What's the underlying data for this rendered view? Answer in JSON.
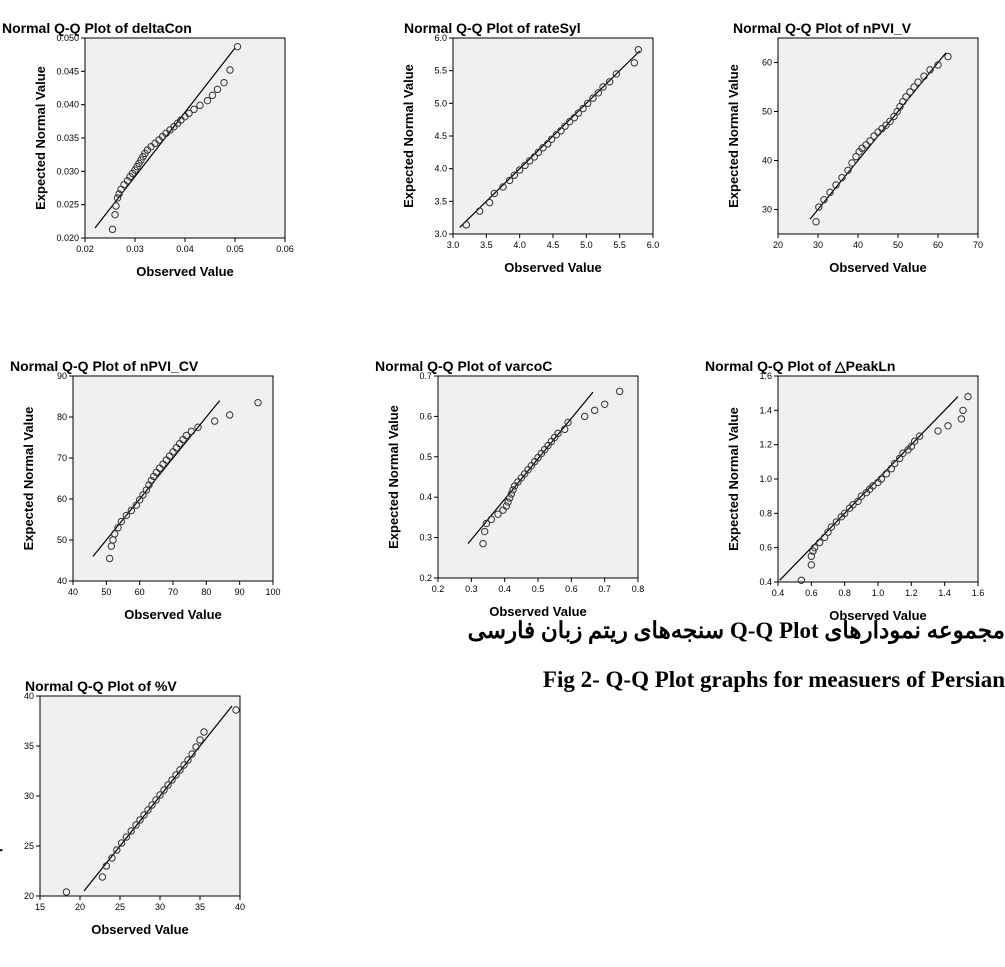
{
  "chart_data": [
    {
      "type": "scatter",
      "title": "Normal Q-Q Plot of deltaCon",
      "xlabel": "Observed Value",
      "ylabel": "Expected Normal Value",
      "xlim": [
        0.02,
        0.06
      ],
      "ylim": [
        0.02,
        0.05
      ],
      "xticks": [
        0.02,
        0.03,
        0.04,
        0.05,
        0.06
      ],
      "xtick_labels": [
        "0.02",
        "0.03",
        "0.04",
        "0.05",
        "0.06"
      ],
      "yticks": [
        0.02,
        0.025,
        0.03,
        0.035,
        0.04,
        0.045,
        0.05
      ],
      "ytick_labels": [
        "0.020",
        "0.025",
        "0.030",
        "0.035",
        "0.040",
        "0.045",
        "0.050"
      ],
      "fit_line": [
        [
          0.022,
          0.0215
        ],
        [
          0.05,
          0.0485
        ]
      ],
      "x": [
        0.0255,
        0.026,
        0.0262,
        0.0265,
        0.0268,
        0.0272,
        0.0278,
        0.0285,
        0.029,
        0.0295,
        0.03,
        0.0304,
        0.0308,
        0.0312,
        0.0316,
        0.032,
        0.0325,
        0.0332,
        0.034,
        0.0348,
        0.0355,
        0.0362,
        0.037,
        0.0378,
        0.0385,
        0.0392,
        0.04,
        0.0408,
        0.0418,
        0.043,
        0.0445,
        0.0455,
        0.0465,
        0.0478,
        0.049,
        0.0505
      ],
      "y": [
        0.0213,
        0.0235,
        0.0248,
        0.026,
        0.0266,
        0.0273,
        0.028,
        0.0286,
        0.0292,
        0.0297,
        0.0302,
        0.0307,
        0.0312,
        0.0317,
        0.0322,
        0.0327,
        0.0332,
        0.0337,
        0.0342,
        0.0347,
        0.0352,
        0.0357,
        0.0362,
        0.0367,
        0.0372,
        0.0377,
        0.0382,
        0.0387,
        0.0393,
        0.0399,
        0.0406,
        0.0414,
        0.0423,
        0.0433,
        0.0452,
        0.0487
      ]
    },
    {
      "type": "scatter",
      "title": "Normal Q-Q Plot of rateSyl",
      "xlabel": "Observed Value",
      "ylabel": "Expected Normal Value",
      "xlim": [
        3.0,
        6.0
      ],
      "ylim": [
        3.0,
        6.0
      ],
      "xticks": [
        3.0,
        3.5,
        4.0,
        4.5,
        5.0,
        5.5,
        6.0
      ],
      "xtick_labels": [
        "3.0",
        "3.5",
        "4.0",
        "4.5",
        "5.0",
        "5.5",
        "6.0"
      ],
      "yticks": [
        3.0,
        3.5,
        4.0,
        4.5,
        5.0,
        5.5,
        6.0
      ],
      "ytick_labels": [
        "3.0",
        "3.5",
        "4.0",
        "4.5",
        "5.0",
        "5.5",
        "6.0"
      ],
      "fit_line": [
        [
          3.1,
          3.1
        ],
        [
          5.8,
          5.8
        ]
      ],
      "x": [
        3.2,
        3.4,
        3.55,
        3.62,
        3.75,
        3.85,
        3.92,
        4.0,
        4.08,
        4.15,
        4.22,
        4.28,
        4.35,
        4.42,
        4.48,
        4.55,
        4.62,
        4.68,
        4.75,
        4.82,
        4.88,
        4.95,
        5.02,
        5.1,
        5.18,
        5.25,
        5.35,
        5.45,
        5.72,
        5.78
      ],
      "y": [
        3.14,
        3.35,
        3.48,
        3.62,
        3.72,
        3.82,
        3.9,
        3.98,
        4.05,
        4.12,
        4.18,
        4.25,
        4.32,
        4.38,
        4.45,
        4.52,
        4.58,
        4.65,
        4.72,
        4.78,
        4.85,
        4.92,
        5.0,
        5.08,
        5.16,
        5.25,
        5.33,
        5.45,
        5.62,
        5.82
      ]
    },
    {
      "type": "scatter",
      "title": "Normal Q-Q Plot of nPVI_V",
      "xlabel": "Observed Value",
      "ylabel": "Expected Normal Value",
      "xlim": [
        20,
        70
      ],
      "ylim": [
        25,
        65
      ],
      "xticks": [
        20,
        30,
        40,
        50,
        60,
        70
      ],
      "xtick_labels": [
        "20",
        "30",
        "40",
        "50",
        "60",
        "70"
      ],
      "yticks": [
        30,
        40,
        50,
        60
      ],
      "ytick_labels": [
        "30",
        "40",
        "50",
        "60"
      ],
      "fit_line": [
        [
          28,
          28
        ],
        [
          62,
          62
        ]
      ],
      "x": [
        29.5,
        30.2,
        31.5,
        33,
        34.5,
        36,
        37.5,
        38.5,
        39.5,
        40.3,
        41,
        42,
        43,
        44,
        45,
        46,
        47,
        48,
        49,
        49.8,
        50.5,
        51.2,
        52,
        53,
        54,
        55,
        56.5,
        58,
        60,
        62.5
      ],
      "y": [
        27.5,
        30.5,
        32,
        33.5,
        35,
        36.5,
        38,
        39.5,
        40.8,
        41.8,
        42.5,
        43.2,
        44,
        45,
        45.8,
        46.5,
        47.2,
        48,
        49,
        50,
        51,
        52,
        53,
        54,
        55,
        56,
        57.2,
        58.5,
        59.5,
        61.2
      ]
    },
    {
      "type": "scatter",
      "title": "Normal Q-Q Plot of nPVI_CV",
      "xlabel": "Observed Value",
      "ylabel": "Expected Normal Value",
      "xlim": [
        40,
        100
      ],
      "ylim": [
        40,
        90
      ],
      "xticks": [
        40,
        50,
        60,
        70,
        80,
        90,
        100
      ],
      "xtick_labels": [
        "40",
        "50",
        "60",
        "70",
        "80",
        "90",
        "100"
      ],
      "yticks": [
        40,
        50,
        60,
        70,
        80,
        90
      ],
      "ytick_labels": [
        "40",
        "50",
        "60",
        "70",
        "80",
        "90"
      ],
      "fit_line": [
        [
          46,
          46
        ],
        [
          84,
          84
        ]
      ],
      "x": [
        51,
        51.5,
        52,
        52.5,
        53.5,
        54.5,
        56,
        57.5,
        59,
        60,
        61,
        62,
        62.8,
        63.5,
        64.2,
        65,
        66,
        67,
        68,
        69,
        70,
        71,
        72,
        73,
        74,
        75.5,
        77.5,
        82.5,
        87,
        95.5
      ],
      "y": [
        45.5,
        48.5,
        50,
        51.5,
        53,
        54.5,
        56,
        57.2,
        58.5,
        59.8,
        61,
        62.2,
        63.4,
        64.5,
        65.5,
        66.5,
        67.5,
        68.5,
        69.5,
        70.5,
        71.5,
        72.5,
        73.5,
        74.5,
        75.5,
        76.5,
        77.5,
        79,
        80.5,
        83.5
      ]
    },
    {
      "type": "scatter",
      "title": "Normal Q-Q Plot of varcoC",
      "xlabel": "Observed Value",
      "ylabel": "Expected Normal Value",
      "xlim": [
        0.2,
        0.8
      ],
      "ylim": [
        0.2,
        0.7
      ],
      "xticks": [
        0.2,
        0.3,
        0.4,
        0.5,
        0.6,
        0.7,
        0.8
      ],
      "xtick_labels": [
        "0.2",
        "0.3",
        "0.4",
        "0.5",
        "0.6",
        "0.7",
        "0.8"
      ],
      "yticks": [
        0.2,
        0.3,
        0.4,
        0.5,
        0.6,
        0.7
      ],
      "ytick_labels": [
        "0.2",
        "0.3",
        "0.4",
        "0.5",
        "0.6",
        "0.7"
      ],
      "fit_line": [
        [
          0.29,
          0.285
        ],
        [
          0.665,
          0.66
        ]
      ],
      "x": [
        0.335,
        0.34,
        0.345,
        0.36,
        0.38,
        0.395,
        0.405,
        0.41,
        0.415,
        0.42,
        0.425,
        0.43,
        0.44,
        0.45,
        0.46,
        0.47,
        0.48,
        0.49,
        0.5,
        0.51,
        0.52,
        0.53,
        0.54,
        0.55,
        0.56,
        0.58,
        0.59,
        0.64,
        0.67,
        0.7,
        0.745
      ],
      "y": [
        0.285,
        0.315,
        0.335,
        0.345,
        0.358,
        0.368,
        0.378,
        0.388,
        0.398,
        0.408,
        0.418,
        0.428,
        0.438,
        0.448,
        0.458,
        0.468,
        0.478,
        0.488,
        0.498,
        0.508,
        0.518,
        0.528,
        0.538,
        0.548,
        0.558,
        0.568,
        0.585,
        0.6,
        0.615,
        0.63,
        0.662
      ]
    },
    {
      "type": "scatter",
      "title": "Normal Q-Q Plot of △PeakLn",
      "xlabel": "Observed Value",
      "ylabel": "Expected Normal Value",
      "xlim": [
        0.4,
        1.6
      ],
      "ylim": [
        0.4,
        1.6
      ],
      "xticks": [
        0.4,
        0.6,
        0.8,
        1.0,
        1.2,
        1.4,
        1.6
      ],
      "xtick_labels": [
        "0.4",
        "0.6",
        "0.8",
        "1.0",
        "1.2",
        "1.4",
        "1.6"
      ],
      "yticks": [
        0.4,
        0.6,
        0.8,
        1.0,
        1.2,
        1.4,
        1.6
      ],
      "ytick_labels": [
        "0.4",
        "0.6",
        "0.8",
        "1.0",
        "1.2",
        "1.4",
        "1.6"
      ],
      "fit_line": [
        [
          0.41,
          0.41
        ],
        [
          1.48,
          1.48
        ]
      ],
      "x": [
        0.54,
        0.6,
        0.6,
        0.61,
        0.62,
        0.65,
        0.68,
        0.7,
        0.72,
        0.75,
        0.78,
        0.8,
        0.83,
        0.85,
        0.88,
        0.9,
        0.93,
        0.95,
        0.97,
        1.0,
        1.02,
        1.05,
        1.08,
        1.1,
        1.13,
        1.15,
        1.18,
        1.2,
        1.22,
        1.25,
        1.36,
        1.42,
        1.5,
        1.51,
        1.54
      ],
      "y": [
        0.41,
        0.5,
        0.55,
        0.58,
        0.6,
        0.63,
        0.66,
        0.69,
        0.72,
        0.75,
        0.78,
        0.8,
        0.83,
        0.85,
        0.87,
        0.9,
        0.92,
        0.94,
        0.96,
        0.98,
        1.0,
        1.03,
        1.06,
        1.09,
        1.12,
        1.15,
        1.17,
        1.19,
        1.22,
        1.25,
        1.28,
        1.31,
        1.35,
        1.4,
        1.48
      ]
    },
    {
      "type": "scatter",
      "title": "Normal Q-Q Plot of %V",
      "xlabel": "Observed Value",
      "ylabel": "Expected Normal Value",
      "xlim": [
        15,
        40
      ],
      "ylim": [
        20,
        40
      ],
      "xticks": [
        15,
        20,
        25,
        30,
        35,
        40
      ],
      "xtick_labels": [
        "15",
        "20",
        "25",
        "30",
        "35",
        "40"
      ],
      "yticks": [
        20,
        25,
        30,
        35,
        40
      ],
      "ytick_labels": [
        "20",
        "25",
        "30",
        "35",
        "40"
      ],
      "fit_line": [
        [
          20.5,
          20.5
        ],
        [
          39,
          39
        ]
      ],
      "x": [
        18.3,
        22.8,
        23.3,
        24,
        24.6,
        25.2,
        25.8,
        26.4,
        27,
        27.5,
        28,
        28.5,
        29,
        29.5,
        30,
        30.5,
        31,
        31.5,
        32,
        32.5,
        33,
        33.5,
        34,
        34.5,
        35,
        35.5,
        39.5
      ],
      "y": [
        20.4,
        21.9,
        23,
        23.8,
        24.6,
        25.3,
        25.9,
        26.5,
        27.1,
        27.6,
        28.1,
        28.6,
        29.1,
        29.6,
        30.1,
        30.6,
        31.1,
        31.6,
        32.1,
        32.6,
        33.1,
        33.6,
        34.2,
        34.9,
        35.6,
        36.4,
        38.6
      ]
    }
  ],
  "caption": {
    "fa": "مجموعه نمودارهای Q-Q Plot سنجه‌های ریتم زبان فارسی",
    "en": "Fig 2- Q-Q Plot graphs for measuers of Persian"
  }
}
